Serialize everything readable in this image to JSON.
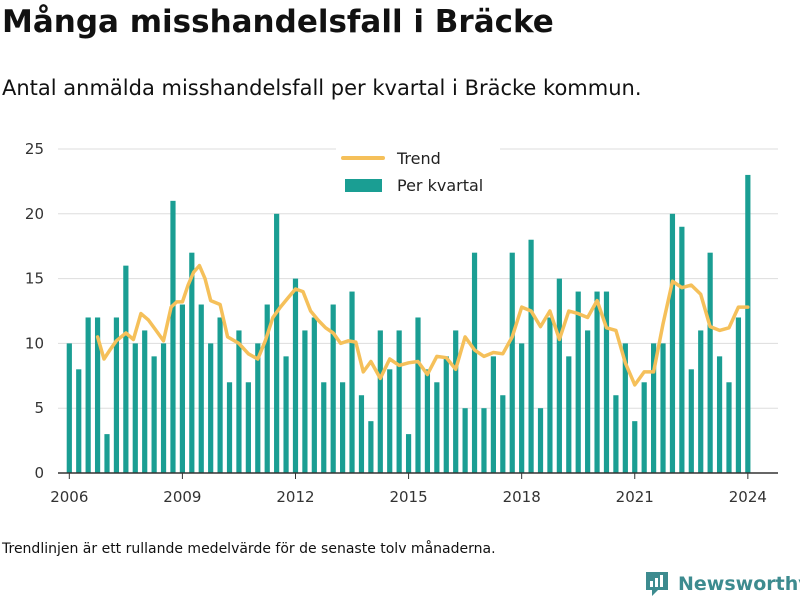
{
  "title": "Många misshandelsfall i Bräcke",
  "subtitle": "Antal anmälda misshandelsfall per kvartal i Bräcke kommun.",
  "footnote": "Trendlinjen är ett rullande medelvärde för de senaste tolv månaderna.",
  "brand": {
    "name": "Newsworthy",
    "color": "#3d8b8f",
    "icon": "newsworthy-logo-icon"
  },
  "colors": {
    "bar": "#1a9e93",
    "trend": "#f5c05a",
    "grid": "#dddddd",
    "axis": "#333333"
  },
  "chart_data": {
    "type": "bar",
    "title": "",
    "xlabel": "",
    "ylabel": "",
    "ylim": [
      0,
      25
    ],
    "yticks": [
      0,
      5,
      10,
      15,
      20,
      25
    ],
    "xlim": [
      2005.7,
      2024.8
    ],
    "xticks": [
      2006,
      2009,
      2012,
      2015,
      2018,
      2021,
      2024
    ],
    "xtick_labels": [
      "2006",
      "2009",
      "2012",
      "2015",
      "2018",
      "2021",
      "2024"
    ],
    "grid": true,
    "legend": {
      "placement": "top-center"
    },
    "x": [
      2006.0,
      2006.25,
      2006.5,
      2006.75,
      2007.0,
      2007.25,
      2007.5,
      2007.75,
      2008.0,
      2008.25,
      2008.5,
      2008.75,
      2009.0,
      2009.25,
      2009.5,
      2009.75,
      2010.0,
      2010.25,
      2010.5,
      2010.75,
      2011.0,
      2011.25,
      2011.5,
      2011.75,
      2012.0,
      2012.25,
      2012.5,
      2012.75,
      2013.0,
      2013.25,
      2013.5,
      2013.75,
      2014.0,
      2014.25,
      2014.5,
      2014.75,
      2015.0,
      2015.25,
      2015.5,
      2015.75,
      2016.0,
      2016.25,
      2016.5,
      2016.75,
      2017.0,
      2017.25,
      2017.5,
      2017.75,
      2018.0,
      2018.25,
      2018.5,
      2018.75,
      2019.0,
      2019.25,
      2019.5,
      2019.75,
      2020.0,
      2020.25,
      2020.5,
      2020.75,
      2021.0,
      2021.25,
      2021.5,
      2021.75,
      2022.0,
      2022.25,
      2022.5,
      2022.75,
      2023.0,
      2023.25,
      2023.5,
      2023.75,
      2024.0
    ],
    "series": [
      {
        "name": "Per kvartal",
        "type": "bar",
        "color": "#1a9e93",
        "values": [
          10,
          8,
          12,
          12,
          3,
          12,
          16,
          10,
          11,
          9,
          10,
          21,
          13,
          17,
          13,
          10,
          12,
          7,
          11,
          7,
          10,
          13,
          20,
          9,
          15,
          11,
          12,
          7,
          13,
          7,
          14,
          6,
          4,
          11,
          8,
          11,
          3,
          12,
          8,
          7,
          9,
          11,
          5,
          17,
          5,
          9,
          6,
          17,
          10,
          18,
          5,
          12,
          15,
          9,
          14,
          11,
          14,
          14,
          6,
          10,
          4,
          7,
          10,
          10,
          20,
          19,
          8,
          11,
          17,
          9,
          7,
          12,
          23
        ]
      },
      {
        "name": "Trend",
        "type": "line",
        "color": "#f5c05a",
        "x": [
          2006.75,
          2006.92,
          2007.08,
          2007.25,
          2007.5,
          2007.7,
          2007.9,
          2008.1,
          2008.3,
          2008.5,
          2008.7,
          2008.85,
          2009.0,
          2009.15,
          2009.3,
          2009.45,
          2009.6,
          2009.75,
          2010.0,
          2010.2,
          2010.5,
          2010.75,
          2011.0,
          2011.2,
          2011.4,
          2011.6,
          2011.8,
          2012.0,
          2012.2,
          2012.4,
          2012.6,
          2012.8,
          2013.0,
          2013.2,
          2013.4,
          2013.6,
          2013.8,
          2014.0,
          2014.25,
          2014.5,
          2014.75,
          2015.0,
          2015.25,
          2015.5,
          2015.75,
          2016.0,
          2016.25,
          2016.5,
          2016.75,
          2017.0,
          2017.25,
          2017.5,
          2017.75,
          2018.0,
          2018.25,
          2018.5,
          2018.75,
          2019.0,
          2019.25,
          2019.5,
          2019.75,
          2020.0,
          2020.25,
          2020.5,
          2020.75,
          2021.0,
          2021.25,
          2021.5,
          2021.75,
          2022.0,
          2022.25,
          2022.5,
          2022.75,
          2023.0,
          2023.25,
          2023.5,
          2023.75,
          2024.0
        ],
        "values": [
          10.5,
          8.8,
          9.5,
          10.2,
          10.8,
          10.3,
          12.3,
          11.8,
          11.0,
          10.2,
          12.8,
          13.2,
          13.2,
          14.5,
          15.5,
          16.0,
          15.0,
          13.3,
          13.0,
          10.5,
          10.0,
          9.2,
          8.8,
          10.2,
          12.0,
          12.8,
          13.5,
          14.2,
          14.0,
          12.5,
          11.8,
          11.2,
          10.8,
          10.0,
          10.2,
          10.1,
          7.8,
          8.6,
          7.3,
          8.8,
          8.3,
          8.5,
          8.6,
          7.6,
          9.0,
          8.9,
          8.0,
          10.5,
          9.5,
          9.0,
          9.3,
          9.2,
          10.5,
          12.8,
          12.5,
          11.3,
          12.5,
          10.3,
          12.5,
          12.3,
          12.0,
          13.3,
          11.2,
          11.0,
          8.5,
          6.8,
          7.8,
          7.8,
          11.5,
          14.8,
          14.3,
          14.5,
          13.8,
          11.3,
          11.0,
          11.2,
          12.8,
          12.8
        ]
      }
    ]
  }
}
